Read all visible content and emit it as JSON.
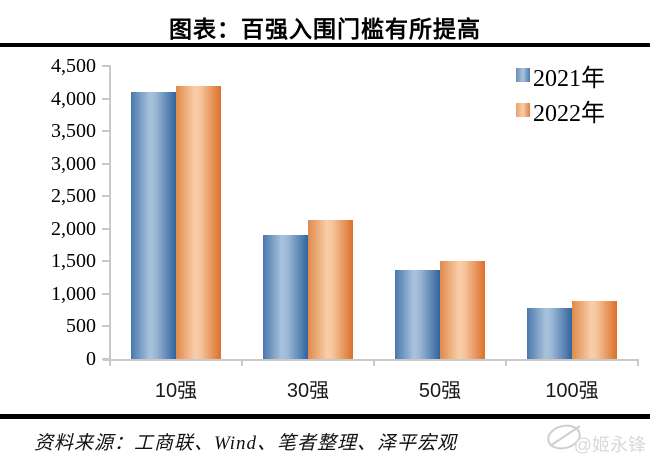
{
  "source_note": "资料来源：工商联、Wind、笔者整理、泽平宏观",
  "watermark": "@姬永锋",
  "colors": {
    "series_2021_edge": "#31649f",
    "series_2021_light": "#a9c3dd",
    "series_2022_edge": "#dd7029",
    "series_2022_light": "#f9cda8",
    "axis": "#c9c9c9",
    "divider_rule": "#000000",
    "watermark_gray": "#d9d9d9"
  },
  "chart_data": {
    "type": "bar",
    "title": "图表：百强入围门槛有所提高",
    "categories": [
      "10强",
      "30强",
      "50强",
      "100强"
    ],
    "series": [
      {
        "name": "2021年",
        "color": "#4a78ab",
        "values": [
          4100,
          1900,
          1370,
          780
        ]
      },
      {
        "name": "2022年",
        "color": "#e8813d",
        "values": [
          4200,
          2140,
          1500,
          890
        ]
      }
    ],
    "xlabel": "",
    "ylabel": "",
    "ylim": [
      0,
      4500
    ],
    "y_tick_step": 500,
    "y_ticks": [
      "4,500",
      "4,000",
      "3,500",
      "3,000",
      "2,500",
      "2,000",
      "1,500",
      "1,000",
      "500",
      "0"
    ],
    "grid": false,
    "legend_position": "top-right"
  }
}
